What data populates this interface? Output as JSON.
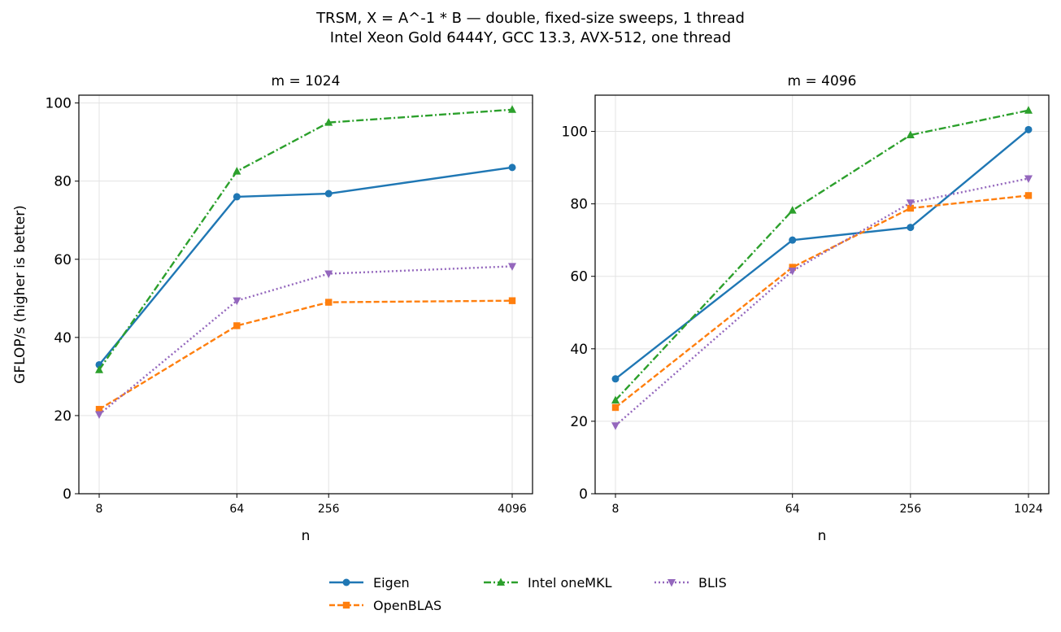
{
  "title_line1": "TRSM, X = A^-1 * B — double, fixed-size sweeps, 1 thread",
  "title_line2": "Intel Xeon Gold 6444Y, GCC 13.3, AVX-512, one thread",
  "chart_data": [
    {
      "type": "line",
      "title": "m = 1024",
      "xlabel": "n",
      "ylabel": "GFLOP/s (higher is better)",
      "x_scale": "log2",
      "x": [
        8,
        64,
        256,
        4096
      ],
      "x_tick_labels": [
        "8",
        "64",
        "256",
        "4096"
      ],
      "ylim": [
        0,
        102
      ],
      "y_ticks": [
        0,
        20,
        40,
        60,
        80,
        100
      ],
      "grid": true,
      "series": [
        {
          "name": "Eigen",
          "values": [
            33.0,
            76.0,
            76.8,
            83.5
          ],
          "color": "#1f77b4",
          "linestyle": "solid",
          "marker": "circle"
        },
        {
          "name": "OpenBLAS",
          "values": [
            21.6,
            43.0,
            49.0,
            49.4
          ],
          "color": "#ff7f0e",
          "linestyle": "dashed",
          "marker": "square"
        },
        {
          "name": "Intel oneMKL",
          "values": [
            31.7,
            82.5,
            95.0,
            98.3
          ],
          "color": "#2ca02c",
          "linestyle": "dashdot",
          "marker": "triangle-up"
        },
        {
          "name": "BLIS",
          "values": [
            20.3,
            49.4,
            56.3,
            58.2
          ],
          "color": "#9467bd",
          "linestyle": "dotted",
          "marker": "triangle-down"
        }
      ]
    },
    {
      "type": "line",
      "title": "m = 4096",
      "xlabel": "n",
      "ylabel": "",
      "x_scale": "log2",
      "x": [
        8,
        64,
        256,
        1024
      ],
      "x_tick_labels": [
        "8",
        "64",
        "256",
        "1024"
      ],
      "ylim": [
        0,
        110
      ],
      "y_ticks": [
        0,
        20,
        40,
        60,
        80,
        100
      ],
      "grid": true,
      "series": [
        {
          "name": "Eigen",
          "values": [
            31.7,
            70.0,
            73.5,
            100.5
          ],
          "color": "#1f77b4",
          "linestyle": "solid",
          "marker": "circle"
        },
        {
          "name": "OpenBLAS",
          "values": [
            23.8,
            62.5,
            78.8,
            82.3
          ],
          "color": "#ff7f0e",
          "linestyle": "dashed",
          "marker": "square"
        },
        {
          "name": "Intel oneMKL",
          "values": [
            25.8,
            78.2,
            99.0,
            105.8
          ],
          "color": "#2ca02c",
          "linestyle": "dashdot",
          "marker": "triangle-up"
        },
        {
          "name": "BLIS",
          "values": [
            18.8,
            61.5,
            80.3,
            87.0
          ],
          "color": "#9467bd",
          "linestyle": "dotted",
          "marker": "triangle-down"
        }
      ]
    }
  ],
  "legend": {
    "placement": "bottom-center",
    "items": [
      {
        "label": "Eigen",
        "color": "#1f77b4",
        "linestyle": "solid",
        "marker": "circle"
      },
      {
        "label": "OpenBLAS",
        "color": "#ff7f0e",
        "linestyle": "dashed",
        "marker": "square"
      },
      {
        "label": "Intel oneMKL",
        "color": "#2ca02c",
        "linestyle": "dashdot",
        "marker": "triangle-up"
      },
      {
        "label": "BLIS",
        "color": "#9467bd",
        "linestyle": "dotted",
        "marker": "triangle-down"
      }
    ]
  }
}
